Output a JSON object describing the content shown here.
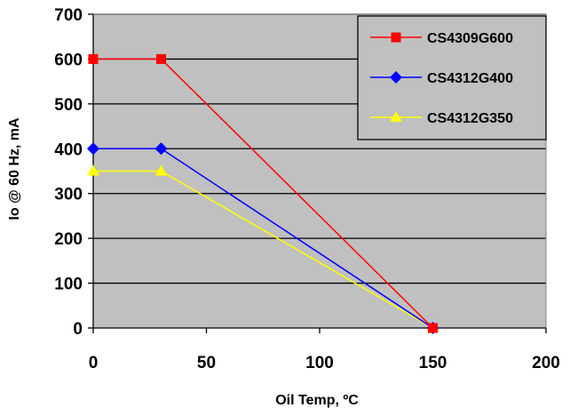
{
  "chart_data": {
    "type": "line",
    "title": "",
    "xlabel": "Oil Temp, ºC",
    "ylabel": "Io @ 60 Hz, mA",
    "xlim": [
      0,
      200
    ],
    "ylim": [
      0,
      700
    ],
    "x_ticks": [
      "0",
      "50",
      "100",
      "150",
      "200"
    ],
    "y_ticks": [
      "0",
      "100",
      "200",
      "300",
      "400",
      "500",
      "600",
      "700"
    ],
    "grid": "horizontal",
    "plot_background": "#c0c0c0",
    "legend_position": "top-right",
    "series": [
      {
        "name": "CS4309G600",
        "color": "#ff0000",
        "marker": "square",
        "x": [
          0,
          30,
          150
        ],
        "y": [
          600,
          600,
          0
        ]
      },
      {
        "name": "CS4312G400",
        "color": "#0000ff",
        "marker": "diamond",
        "x": [
          0,
          30,
          150
        ],
        "y": [
          400,
          400,
          0
        ]
      },
      {
        "name": "CS4312G350",
        "color": "#ffff00",
        "marker": "triangle",
        "x": [
          0,
          30,
          150
        ],
        "y": [
          350,
          350,
          0
        ]
      }
    ]
  }
}
